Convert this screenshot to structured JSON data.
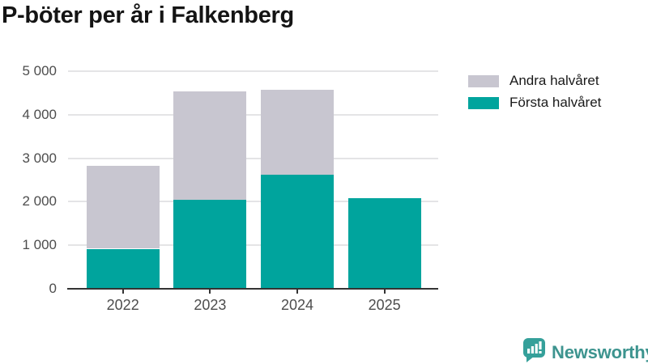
{
  "chart_data": {
    "type": "bar",
    "stacked": true,
    "title": "P-böter per år i Falkenberg",
    "categories": [
      "2022",
      "2023",
      "2024",
      "2025"
    ],
    "series": [
      {
        "name": "Andra halvåret",
        "color": "#c8c6d0",
        "values": [
          1910,
          2480,
          1960,
          0
        ]
      },
      {
        "name": "Första halvåret",
        "color": "#00a49d",
        "values": [
          920,
          2050,
          2620,
          2090
        ]
      }
    ],
    "totals": [
      2830,
      4530,
      4580,
      2090
    ],
    "xlabel": "",
    "ylabel": "",
    "ylim": [
      0,
      5000
    ],
    "yticks": [
      0,
      1000,
      2000,
      3000,
      4000,
      5000
    ],
    "ytick_labels": [
      "0",
      "1 000",
      "2 000",
      "3 000",
      "4 000",
      "5 000"
    ],
    "grid": true,
    "legend_position": "top-right"
  },
  "colors": {
    "axis_line": "#333333",
    "gridline": "#e4e4e6",
    "tick_label": "#4d4d4d",
    "title": "#141414"
  },
  "footer": {
    "brand": "Newsworthy",
    "brand_color": "#3d948f",
    "icon": "newsworthy-speech-bubble-bar-chart-icon",
    "icon_color": "#35a09a"
  }
}
